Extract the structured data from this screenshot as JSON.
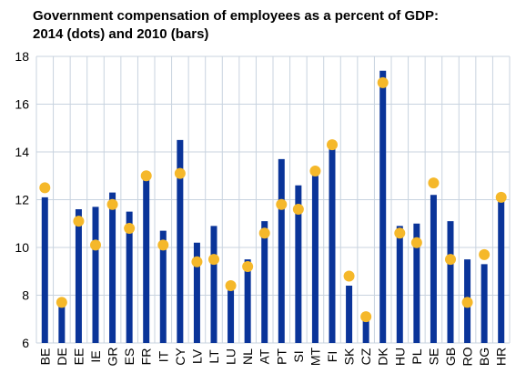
{
  "chart_data": {
    "type": "bar",
    "title_lines": [
      "Government compensation of employees as a percent of GDP:",
      "2014 (dots) and 2010 (bars)"
    ],
    "categories": [
      "BE",
      "DE",
      "EE",
      "IE",
      "GR",
      "ES",
      "FR",
      "IT",
      "CY",
      "LV",
      "LT",
      "LU",
      "NL",
      "AT",
      "PT",
      "SI",
      "MT",
      "FI",
      "SK",
      "CZ",
      "DK",
      "HU",
      "PL",
      "SE",
      "GB",
      "RO",
      "BG",
      "HR"
    ],
    "series": [
      {
        "name": "2010",
        "kind": "bar",
        "values": [
          12.1,
          7.7,
          11.6,
          11.7,
          12.3,
          11.5,
          13.0,
          10.7,
          14.5,
          10.2,
          10.9,
          8.2,
          9.5,
          11.1,
          13.7,
          12.6,
          13.0,
          14.3,
          8.4,
          7.1,
          17.4,
          10.9,
          11.0,
          12.2,
          11.1,
          9.5,
          9.3,
          12.1
        ]
      },
      {
        "name": "2014",
        "kind": "dot",
        "values": [
          12.5,
          7.7,
          11.1,
          10.1,
          11.8,
          10.8,
          13.0,
          10.1,
          13.1,
          9.4,
          9.5,
          8.4,
          9.2,
          10.6,
          11.8,
          11.6,
          13.2,
          14.3,
          8.8,
          7.1,
          16.9,
          10.6,
          10.2,
          12.7,
          9.5,
          7.7,
          9.7,
          12.1
        ]
      }
    ],
    "ylim": [
      6,
      18
    ],
    "yticks": [
      "6",
      "8",
      "10",
      "12",
      "14",
      "16",
      "18"
    ],
    "grid": true,
    "colors": {
      "bar": "#0a3499",
      "dot": "#f5b82a",
      "grid": "#c8d3df"
    }
  }
}
